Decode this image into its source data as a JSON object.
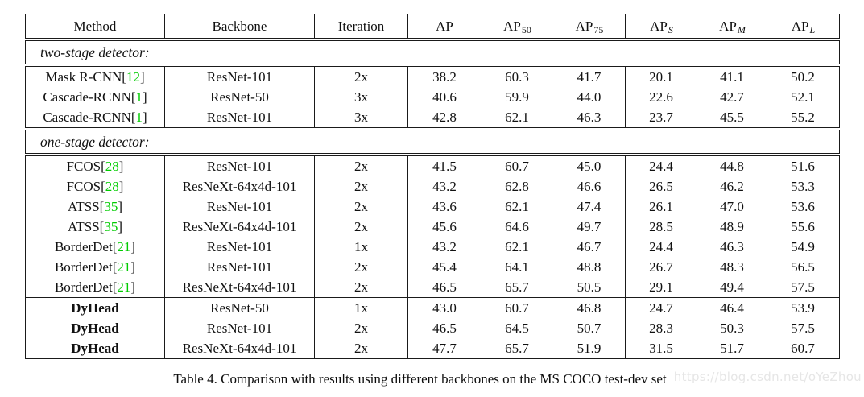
{
  "table": {
    "columns": [
      {
        "key": "method",
        "label": "Method"
      },
      {
        "key": "backbone",
        "label": "Backbone"
      },
      {
        "key": "iteration",
        "label": "Iteration"
      },
      {
        "key": "ap",
        "label": "AP",
        "sub": ""
      },
      {
        "key": "ap50",
        "label": "AP",
        "sub": "50"
      },
      {
        "key": "ap75",
        "label": "AP",
        "sub": "75"
      },
      {
        "key": "aps",
        "label": "AP",
        "sub": "S",
        "sub_italic": true
      },
      {
        "key": "apm",
        "label": "AP",
        "sub": "M",
        "sub_italic": true
      },
      {
        "key": "apl",
        "label": "AP",
        "sub": "L",
        "sub_italic": true
      }
    ],
    "sections": [
      {
        "band": "two-stage detector:",
        "groups": [
          {
            "rows": [
              {
                "method": "Mask R-CNN",
                "ref": "12",
                "bold": false,
                "backbone": "ResNet-101",
                "iteration": "2x",
                "values": [
                  "38.2",
                  "60.3",
                  "41.7",
                  "20.1",
                  "41.1",
                  "50.2"
                ]
              },
              {
                "method": "Cascade-RCNN",
                "ref": "1",
                "bold": false,
                "backbone": "ResNet-50",
                "iteration": "3x",
                "values": [
                  "40.6",
                  "59.9",
                  "44.0",
                  "22.6",
                  "42.7",
                  "52.1"
                ]
              },
              {
                "method": "Cascade-RCNN",
                "ref": "1",
                "bold": false,
                "backbone": "ResNet-101",
                "iteration": "3x",
                "values": [
                  "42.8",
                  "62.1",
                  "46.3",
                  "23.7",
                  "45.5",
                  "55.2"
                ]
              }
            ]
          }
        ]
      },
      {
        "band": "one-stage detector:",
        "groups": [
          {
            "rows": [
              {
                "method": "FCOS",
                "ref": "28",
                "bold": false,
                "backbone": "ResNet-101",
                "iteration": "2x",
                "values": [
                  "41.5",
                  "60.7",
                  "45.0",
                  "24.4",
                  "44.8",
                  "51.6"
                ]
              },
              {
                "method": "FCOS",
                "ref": "28",
                "bold": false,
                "backbone": "ResNeXt-64x4d-101",
                "iteration": "2x",
                "values": [
                  "43.2",
                  "62.8",
                  "46.6",
                  "26.5",
                  "46.2",
                  "53.3"
                ]
              },
              {
                "method": "ATSS",
                "ref": "35",
                "bold": false,
                "backbone": "ResNet-101",
                "iteration": "2x",
                "values": [
                  "43.6",
                  "62.1",
                  "47.4",
                  "26.1",
                  "47.0",
                  "53.6"
                ]
              },
              {
                "method": "ATSS",
                "ref": "35",
                "bold": false,
                "backbone": "ResNeXt-64x4d-101",
                "iteration": "2x",
                "values": [
                  "45.6",
                  "64.6",
                  "49.7",
                  "28.5",
                  "48.9",
                  "55.6"
                ]
              },
              {
                "method": "BorderDet",
                "ref": "21",
                "bold": false,
                "backbone": "ResNet-101",
                "iteration": "1x",
                "values": [
                  "43.2",
                  "62.1",
                  "46.7",
                  "24.4",
                  "46.3",
                  "54.9"
                ]
              },
              {
                "method": "BorderDet",
                "ref": "21",
                "bold": false,
                "backbone": "ResNet-101",
                "iteration": "2x",
                "values": [
                  "45.4",
                  "64.1",
                  "48.8",
                  "26.7",
                  "48.3",
                  "56.5"
                ]
              },
              {
                "method": "BorderDet",
                "ref": "21",
                "bold": false,
                "backbone": "ResNeXt-64x4d-101",
                "iteration": "2x",
                "values": [
                  "46.5",
                  "65.7",
                  "50.5",
                  "29.1",
                  "49.4",
                  "57.5"
                ]
              }
            ]
          },
          {
            "rows": [
              {
                "method": "DyHead",
                "ref": null,
                "bold": true,
                "backbone": "ResNet-50",
                "iteration": "1x",
                "values": [
                  "43.0",
                  "60.7",
                  "46.8",
                  "24.7",
                  "46.4",
                  "53.9"
                ]
              },
              {
                "method": "DyHead",
                "ref": null,
                "bold": true,
                "backbone": "ResNet-101",
                "iteration": "2x",
                "values": [
                  "46.5",
                  "64.5",
                  "50.7",
                  "28.3",
                  "50.3",
                  "57.5"
                ]
              },
              {
                "method": "DyHead",
                "ref": null,
                "bold": true,
                "backbone": "ResNeXt-64x4d-101",
                "iteration": "2x",
                "values": [
                  "47.7",
                  "65.7",
                  "51.9",
                  "31.5",
                  "51.7",
                  "60.7"
                ]
              }
            ]
          }
        ]
      }
    ]
  },
  "caption": "Table 4. Comparison with results using different backbones on the MS COCO test-dev set",
  "watermark": "https://blog.csdn.net/oYeZhou",
  "colors": {
    "citation_green": "#00cc00",
    "watermark_gray": "#e6e6e6",
    "border_black": "#1a1a1a"
  }
}
